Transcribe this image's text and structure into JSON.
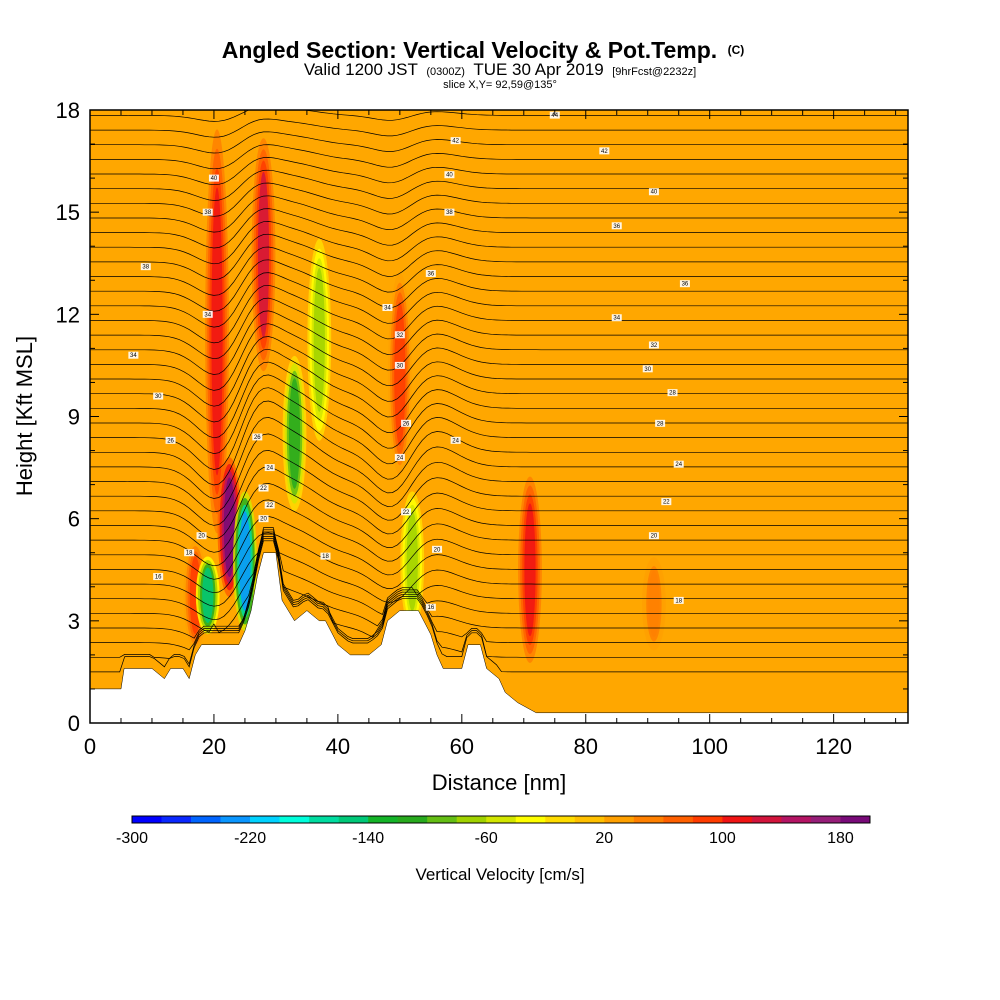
{
  "title": {
    "main": "Angled Section: Vertical Velocity & Pot.Temp.",
    "main_unit": "(C)",
    "valid_prefix": "Valid 1200 JST",
    "valid_utc": "(0300Z)",
    "valid_date": "TUE 30 Apr 2019",
    "valid_fcst": "[9hrFcst@2232z]",
    "slice": "slice X,Y= 92,59@135°"
  },
  "chart_data": {
    "type": "heatmap",
    "xlabel": "Distance [nm]",
    "ylabel": "Height [Kft MSL]",
    "xlim": [
      0,
      132
    ],
    "ylim": [
      0,
      18
    ],
    "x_ticks": [
      0,
      20,
      40,
      60,
      80,
      100,
      120
    ],
    "y_ticks": [
      0,
      3,
      6,
      9,
      12,
      15,
      18
    ],
    "colorbar": {
      "label": "Vertical Velocity [cm/s]",
      "min": -300,
      "max": 200,
      "step": 20,
      "tick_values": [
        -300,
        -220,
        -140,
        -60,
        20,
        100,
        180
      ],
      "colors": [
        "#0000ff",
        "#0a28ff",
        "#0064ff",
        "#0a96ff",
        "#00d2ff",
        "#00ffdc",
        "#00dca0",
        "#00c878",
        "#14b428",
        "#28aa1e",
        "#64be14",
        "#a0d200",
        "#d2e600",
        "#ffff00",
        "#ffdc00",
        "#ffc000",
        "#ffa000",
        "#ff8000",
        "#ff6000",
        "#ff3c00",
        "#f01414",
        "#d2143c",
        "#b41464",
        "#961e78",
        "#780a78"
      ]
    },
    "vertical_velocity_features": [
      {
        "x": 17,
        "y_bottom": 2.0,
        "y_top": 5.5,
        "value": 80
      },
      {
        "x": 20.5,
        "y_bottom": 5.0,
        "y_top": 18,
        "value": 100
      },
      {
        "x": 22.5,
        "y_bottom": 3.5,
        "y_top": 8.0,
        "value": 180
      },
      {
        "x": 28,
        "y_bottom": 10.0,
        "y_top": 17.5,
        "value": 120
      },
      {
        "x": 25,
        "y_bottom": 2.5,
        "y_top": 7.0,
        "value": -240
      },
      {
        "x": 19,
        "y_bottom": 2.5,
        "y_top": 5.0,
        "value": -160
      },
      {
        "x": 33,
        "y_bottom": 6.0,
        "y_top": 11.0,
        "value": -120
      },
      {
        "x": 37,
        "y_bottom": 8.0,
        "y_top": 14.5,
        "value": -70
      },
      {
        "x": 50,
        "y_bottom": 7.0,
        "y_top": 13.5,
        "value": 90
      },
      {
        "x": 52,
        "y_bottom": 2.5,
        "y_top": 7.0,
        "value": -80
      },
      {
        "x": 71,
        "y_bottom": 1.5,
        "y_top": 7.5,
        "value": 100
      },
      {
        "x": 91,
        "y_bottom": 2.0,
        "y_top": 5.0,
        "value": 50
      }
    ],
    "terrain": [
      [
        0,
        1.0
      ],
      [
        5,
        1.0
      ],
      [
        5.5,
        1.6
      ],
      [
        10,
        1.6
      ],
      [
        12,
        1.3
      ],
      [
        13,
        1.6
      ],
      [
        15,
        1.6
      ],
      [
        16,
        1.3
      ],
      [
        17,
        2.0
      ],
      [
        18,
        2.3
      ],
      [
        24,
        2.3
      ],
      [
        25,
        2.7
      ],
      [
        26,
        3.3
      ],
      [
        27,
        4.3
      ],
      [
        28,
        5.0
      ],
      [
        30,
        5.0
      ],
      [
        31,
        3.6
      ],
      [
        33,
        3.0
      ],
      [
        35,
        3.3
      ],
      [
        37,
        3.0
      ],
      [
        38,
        3.0
      ],
      [
        40,
        2.3
      ],
      [
        42,
        2.0
      ],
      [
        45,
        2.0
      ],
      [
        47,
        2.3
      ],
      [
        48,
        3.0
      ],
      [
        50,
        3.3
      ],
      [
        53,
        3.3
      ],
      [
        55,
        2.6
      ],
      [
        56,
        2.0
      ],
      [
        57,
        1.6
      ],
      [
        60,
        1.6
      ],
      [
        61,
        2.3
      ],
      [
        63,
        2.3
      ],
      [
        64,
        1.6
      ],
      [
        66,
        1.3
      ],
      [
        67,
        0.9
      ],
      [
        69,
        0.6
      ],
      [
        72,
        0.3
      ],
      [
        132,
        0.3
      ]
    ],
    "contour_labels": [
      {
        "x": 75,
        "y": 17.85,
        "text": "44"
      },
      {
        "x": 59,
        "y": 17.1,
        "text": "42"
      },
      {
        "x": 83,
        "y": 16.8,
        "text": "42"
      },
      {
        "x": 58,
        "y": 16.1,
        "text": "40"
      },
      {
        "x": 91,
        "y": 15.6,
        "text": "40"
      },
      {
        "x": 20,
        "y": 16.0,
        "text": "40"
      },
      {
        "x": 19,
        "y": 15.0,
        "text": "38"
      },
      {
        "x": 58,
        "y": 15.0,
        "text": "38"
      },
      {
        "x": 85,
        "y": 14.6,
        "text": "36"
      },
      {
        "x": 9,
        "y": 13.4,
        "text": "38"
      },
      {
        "x": 55,
        "y": 13.2,
        "text": "36"
      },
      {
        "x": 96,
        "y": 12.9,
        "text": "36"
      },
      {
        "x": 19,
        "y": 12.0,
        "text": "34"
      },
      {
        "x": 48,
        "y": 12.2,
        "text": "34"
      },
      {
        "x": 85,
        "y": 11.9,
        "text": "34"
      },
      {
        "x": 7,
        "y": 10.8,
        "text": "34"
      },
      {
        "x": 50,
        "y": 11.4,
        "text": "32"
      },
      {
        "x": 91,
        "y": 11.1,
        "text": "32"
      },
      {
        "x": 50,
        "y": 10.5,
        "text": "30"
      },
      {
        "x": 90,
        "y": 10.4,
        "text": "30"
      },
      {
        "x": 11,
        "y": 9.6,
        "text": "30"
      },
      {
        "x": 94,
        "y": 9.7,
        "text": "28"
      },
      {
        "x": 51,
        "y": 8.8,
        "text": "26"
      },
      {
        "x": 92,
        "y": 8.8,
        "text": "28"
      },
      {
        "x": 27,
        "y": 8.4,
        "text": "26"
      },
      {
        "x": 13,
        "y": 8.3,
        "text": "26"
      },
      {
        "x": 59,
        "y": 8.3,
        "text": "24"
      },
      {
        "x": 50,
        "y": 7.8,
        "text": "24"
      },
      {
        "x": 95,
        "y": 7.6,
        "text": "24"
      },
      {
        "x": 29,
        "y": 7.5,
        "text": "24"
      },
      {
        "x": 28,
        "y": 6.9,
        "text": "22"
      },
      {
        "x": 29,
        "y": 6.4,
        "text": "22"
      },
      {
        "x": 93,
        "y": 6.5,
        "text": "22"
      },
      {
        "x": 51,
        "y": 6.2,
        "text": "22"
      },
      {
        "x": 28,
        "y": 6.0,
        "text": "20"
      },
      {
        "x": 18,
        "y": 5.5,
        "text": "20"
      },
      {
        "x": 91,
        "y": 5.5,
        "text": "20"
      },
      {
        "x": 56,
        "y": 5.1,
        "text": "20"
      },
      {
        "x": 16,
        "y": 5.0,
        "text": "18"
      },
      {
        "x": 38,
        "y": 4.9,
        "text": "18"
      },
      {
        "x": 11,
        "y": 4.3,
        "text": "16"
      },
      {
        "x": 95,
        "y": 3.6,
        "text": "18"
      },
      {
        "x": 55,
        "y": 3.4,
        "text": "16"
      }
    ]
  }
}
